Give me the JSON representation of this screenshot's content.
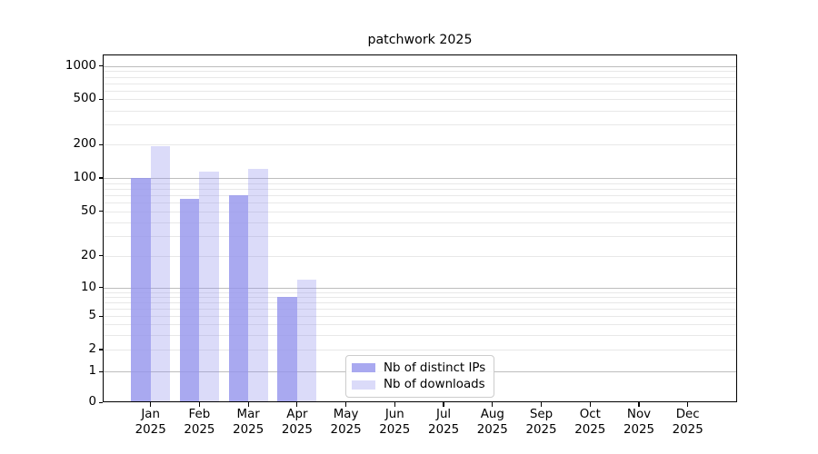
{
  "title": "patchwork 2025",
  "chart_data": {
    "type": "bar",
    "title": "patchwork 2025",
    "categories": [
      "Jan 2025",
      "Feb 2025",
      "Mar 2025",
      "Apr 2025",
      "May 2025",
      "Jun 2025",
      "Jul 2025",
      "Aug 2025",
      "Sep 2025",
      "Oct 2025",
      "Nov 2025",
      "Dec 2025"
    ],
    "series": [
      {
        "name": "Nb of distinct IPs",
        "color": "rgba(147,147,236,0.80)",
        "color_hex": "#a9a9f0",
        "values": [
          100,
          65,
          70,
          8,
          0,
          0,
          0,
          0,
          0,
          0,
          0,
          0
        ]
      },
      {
        "name": "Nb of downloads",
        "color": "rgba(147,147,236,0.33)",
        "color_hex": "#dcdcf8",
        "values": [
          195,
          115,
          120,
          12,
          0,
          0,
          0,
          0,
          0,
          0,
          0,
          0
        ]
      }
    ],
    "xlabel": "",
    "ylabel": "",
    "yscale": "symlog",
    "yticks": [
      0,
      1,
      2,
      5,
      10,
      20,
      50,
      100,
      200,
      500,
      1000
    ],
    "ylim": [
      0,
      1280
    ],
    "grid": true,
    "legend_position": "inside plot, lower center",
    "colors": {
      "grid_major": "#bdbdbd",
      "grid_minor": "#e8e8e8",
      "spine": "#000000",
      "background": "#ffffff",
      "text": "#000000"
    }
  }
}
